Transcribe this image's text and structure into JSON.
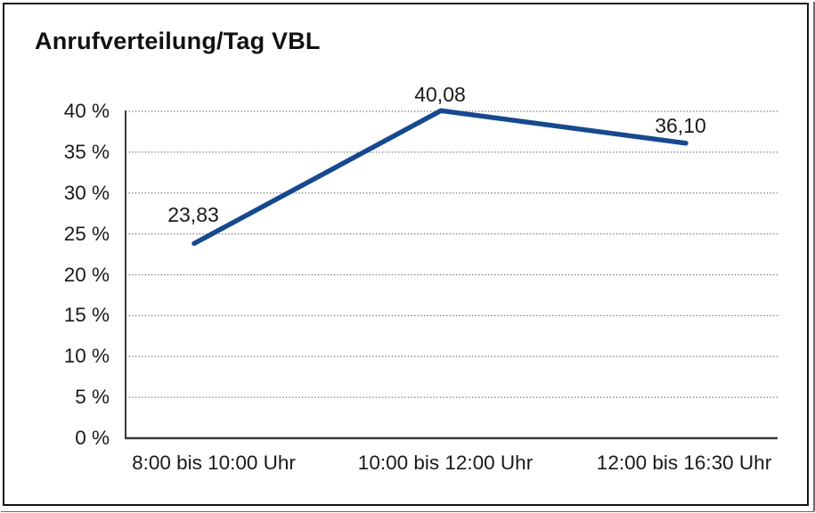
{
  "window": {
    "title": "Anrufverteilung/Tag VBL"
  },
  "chart_data": {
    "type": "line",
    "title": "Anrufverteilung/Tag VBL",
    "categories": [
      "8:00 bis 10:00 Uhr",
      "10:00 bis 12:00 Uhr",
      "12:00 bis 16:30 Uhr"
    ],
    "values": [
      23.83,
      40.08,
      36.1
    ],
    "point_labels": [
      "23,83",
      "40,08",
      "36,10"
    ],
    "y_ticks": [
      {
        "value": 0,
        "label": "0 %"
      },
      {
        "value": 5,
        "label": "5 %"
      },
      {
        "value": 10,
        "label": "10 %"
      },
      {
        "value": 15,
        "label": "15 %"
      },
      {
        "value": 20,
        "label": "20 %"
      },
      {
        "value": 25,
        "label": "25 %"
      },
      {
        "value": 30,
        "label": "30 %"
      },
      {
        "value": 35,
        "label": "35 %"
      },
      {
        "value": 40,
        "label": "40 %"
      }
    ],
    "ylim": [
      0,
      40
    ],
    "xlabel": "",
    "ylabel": "",
    "grid": "horizontal-dotted",
    "legend": "none",
    "colors": {
      "line": "#17498F",
      "axis": "#3a3a3a",
      "grid": "#6e6e6e",
      "text": "#1a1a1a",
      "frame": "#141414"
    }
  }
}
